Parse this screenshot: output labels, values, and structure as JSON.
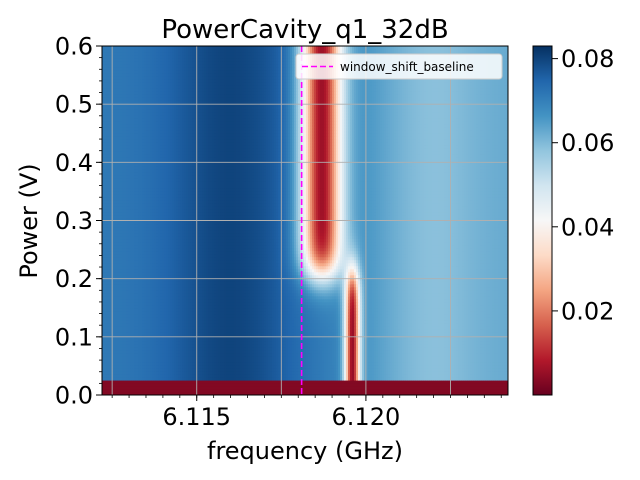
{
  "chart_data": {
    "type": "heatmap",
    "title": "PowerCavity_q1_32dB",
    "xlabel": "frequency (GHz)",
    "ylabel": "Power (V)",
    "xlim": [
      6.1122,
      6.1242
    ],
    "ylim": [
      0.0,
      0.6
    ],
    "x_ticks": [
      {
        "value": 6.115,
        "label": "6.115"
      },
      {
        "value": 6.12,
        "label": "6.120"
      }
    ],
    "y_ticks": [
      {
        "value": 0.0,
        "label": "0.0"
      },
      {
        "value": 0.1,
        "label": "0.1"
      },
      {
        "value": 0.2,
        "label": "0.2"
      },
      {
        "value": 0.3,
        "label": "0.3"
      },
      {
        "value": 0.4,
        "label": "0.4"
      },
      {
        "value": 0.5,
        "label": "0.5"
      },
      {
        "value": 0.6,
        "label": "0.6"
      }
    ],
    "grid": true,
    "colormap": "RdBu",
    "colorbar": {
      "vmin": 0.0,
      "vmax": 0.083,
      "ticks": [
        {
          "value": 0.02,
          "label": "0.02"
        },
        {
          "value": 0.04,
          "label": "0.04"
        },
        {
          "value": 0.06,
          "label": "0.06"
        },
        {
          "value": 0.08,
          "label": "0.08"
        }
      ]
    },
    "vline": {
      "x": 6.1181,
      "color": "#ff00ff",
      "style": "dashed",
      "label": "window_shift_baseline"
    },
    "legend": {
      "placement": "top-right",
      "entries": [
        "window_shift_baseline"
      ]
    },
    "model": {
      "low_power_cutoff": 0.025,
      "low_power_value": 0.003,
      "baseline_value": 0.071,
      "resonance_high": {
        "center": 6.1187,
        "width": 0.0006,
        "min_value": 0.006
      },
      "resonance_low": {
        "center": 6.1196,
        "width": 0.00022,
        "min_value": 0.005
      },
      "transition": {
        "center": 0.21,
        "spread": 0.018
      },
      "shoulder": {
        "center": 6.1226,
        "value_drop": 0.018
      }
    }
  }
}
